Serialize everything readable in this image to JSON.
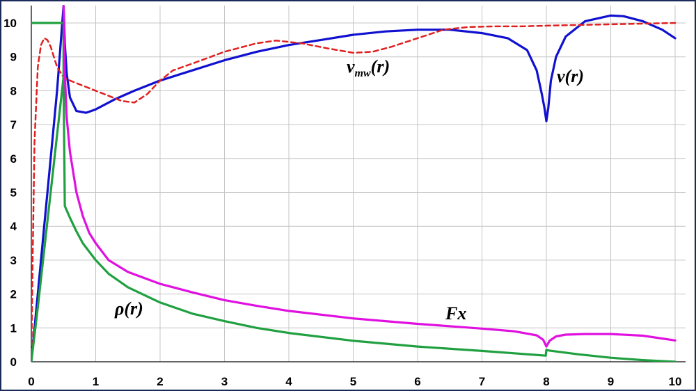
{
  "chart_data": {
    "type": "line",
    "xlim": [
      0,
      10
    ],
    "ylim": [
      0,
      10
    ],
    "x_ticks": [
      "0",
      "1",
      "2",
      "3",
      "4",
      "5",
      "6",
      "7",
      "8",
      "9",
      "10"
    ],
    "y_ticks": [
      "0",
      "1",
      "2",
      "3",
      "4",
      "5",
      "6",
      "7",
      "8",
      "9",
      "10"
    ],
    "grid": true,
    "annotations": {
      "vmw_main": "v",
      "vmw_sub": "mw",
      "vmw_tail": "(r)",
      "v": "v(r)",
      "rho": "ρ(r)",
      "fx": "Fx"
    },
    "series": [
      {
        "name": "v(r)",
        "color": "#1010d0",
        "style": "solid",
        "x": [
          0,
          0.1,
          0.2,
          0.3,
          0.4,
          0.5,
          0.52,
          0.55,
          0.6,
          0.7,
          0.85,
          1.0,
          1.3,
          1.6,
          2.0,
          2.5,
          3.0,
          3.5,
          4.0,
          4.5,
          5.0,
          5.5,
          6.0,
          6.5,
          7.0,
          7.4,
          7.7,
          7.85,
          7.93,
          7.97,
          8.0,
          8.03,
          8.07,
          8.15,
          8.3,
          8.6,
          9.0,
          9.2,
          9.5,
          9.8,
          10.0
        ],
        "y": [
          0.0,
          2.0,
          4.0,
          6.0,
          8.0,
          10.5,
          9.4,
          8.5,
          7.8,
          7.4,
          7.35,
          7.45,
          7.75,
          8.0,
          8.3,
          8.6,
          8.9,
          9.15,
          9.35,
          9.5,
          9.65,
          9.75,
          9.8,
          9.8,
          9.7,
          9.55,
          9.2,
          8.6,
          7.9,
          7.5,
          7.1,
          7.5,
          8.3,
          9.0,
          9.6,
          10.05,
          10.22,
          10.2,
          10.05,
          9.8,
          9.55
        ]
      },
      {
        "name": "v_mw(r)",
        "color": "#e02020",
        "style": "dashed",
        "x": [
          0,
          0.02,
          0.05,
          0.1,
          0.15,
          0.2,
          0.25,
          0.3,
          0.35,
          0.4,
          0.5,
          0.6,
          0.8,
          1.0,
          1.2,
          1.4,
          1.6,
          1.8,
          2.0,
          2.2,
          2.5,
          3.0,
          3.5,
          3.8,
          4.2,
          4.6,
          5.0,
          5.3,
          5.6,
          6.0,
          6.4,
          6.8,
          7.2,
          7.6,
          8.0,
          8.5,
          9.0,
          9.5,
          10.0
        ],
        "y": [
          0.0,
          3.0,
          6.5,
          8.7,
          9.35,
          9.55,
          9.5,
          9.3,
          9.0,
          8.7,
          8.4,
          8.3,
          8.15,
          8.0,
          7.85,
          7.7,
          7.65,
          7.9,
          8.3,
          8.6,
          8.8,
          9.15,
          9.4,
          9.48,
          9.4,
          9.25,
          9.12,
          9.15,
          9.3,
          9.55,
          9.8,
          9.88,
          9.9,
          9.9,
          9.92,
          9.94,
          9.96,
          9.98,
          10.0
        ]
      },
      {
        "name": "ρ(r)",
        "color": "#20a040",
        "style": "solid",
        "x": [
          0,
          0.45,
          0.5,
          0.5,
          0.52,
          0.6,
          0.7,
          0.8,
          1.0,
          1.2,
          1.5,
          2.0,
          2.5,
          3.0,
          3.5,
          4.0,
          5.0,
          6.0,
          7.0,
          7.5,
          7.99,
          8.0,
          8.05,
          8.5,
          9.0,
          9.5,
          10.0
        ],
        "y": [
          10.0,
          10.0,
          10.0,
          8.4,
          4.6,
          4.25,
          3.85,
          3.5,
          3.0,
          2.6,
          2.2,
          1.75,
          1.42,
          1.2,
          1.0,
          0.85,
          0.62,
          0.45,
          0.32,
          0.25,
          0.18,
          0.35,
          0.33,
          0.22,
          0.12,
          0.05,
          0.0
        ]
      },
      {
        "name": "ρ(r) rise",
        "color": "#20a040",
        "style": "solid",
        "x": [
          0,
          0.1,
          0.2,
          0.3,
          0.4,
          0.5
        ],
        "y": [
          0.0,
          1.6,
          3.3,
          5.0,
          6.7,
          8.4
        ]
      },
      {
        "name": "Fx",
        "color": "#e010e0",
        "style": "solid",
        "x": [
          0.5,
          0.52,
          0.55,
          0.6,
          0.7,
          0.8,
          0.9,
          1.0,
          1.2,
          1.5,
          2.0,
          2.5,
          3.0,
          3.5,
          4.0,
          5.0,
          6.0,
          7.0,
          7.5,
          7.85,
          7.95,
          8.0,
          8.05,
          8.15,
          8.3,
          8.6,
          9.0,
          9.5,
          10.0
        ],
        "y": [
          10.5,
          8.5,
          7.2,
          6.2,
          5.0,
          4.3,
          3.8,
          3.5,
          3.0,
          2.65,
          2.3,
          2.05,
          1.82,
          1.65,
          1.5,
          1.28,
          1.12,
          0.98,
          0.9,
          0.78,
          0.65,
          0.45,
          0.62,
          0.75,
          0.8,
          0.82,
          0.82,
          0.77,
          0.63
        ]
      }
    ]
  }
}
